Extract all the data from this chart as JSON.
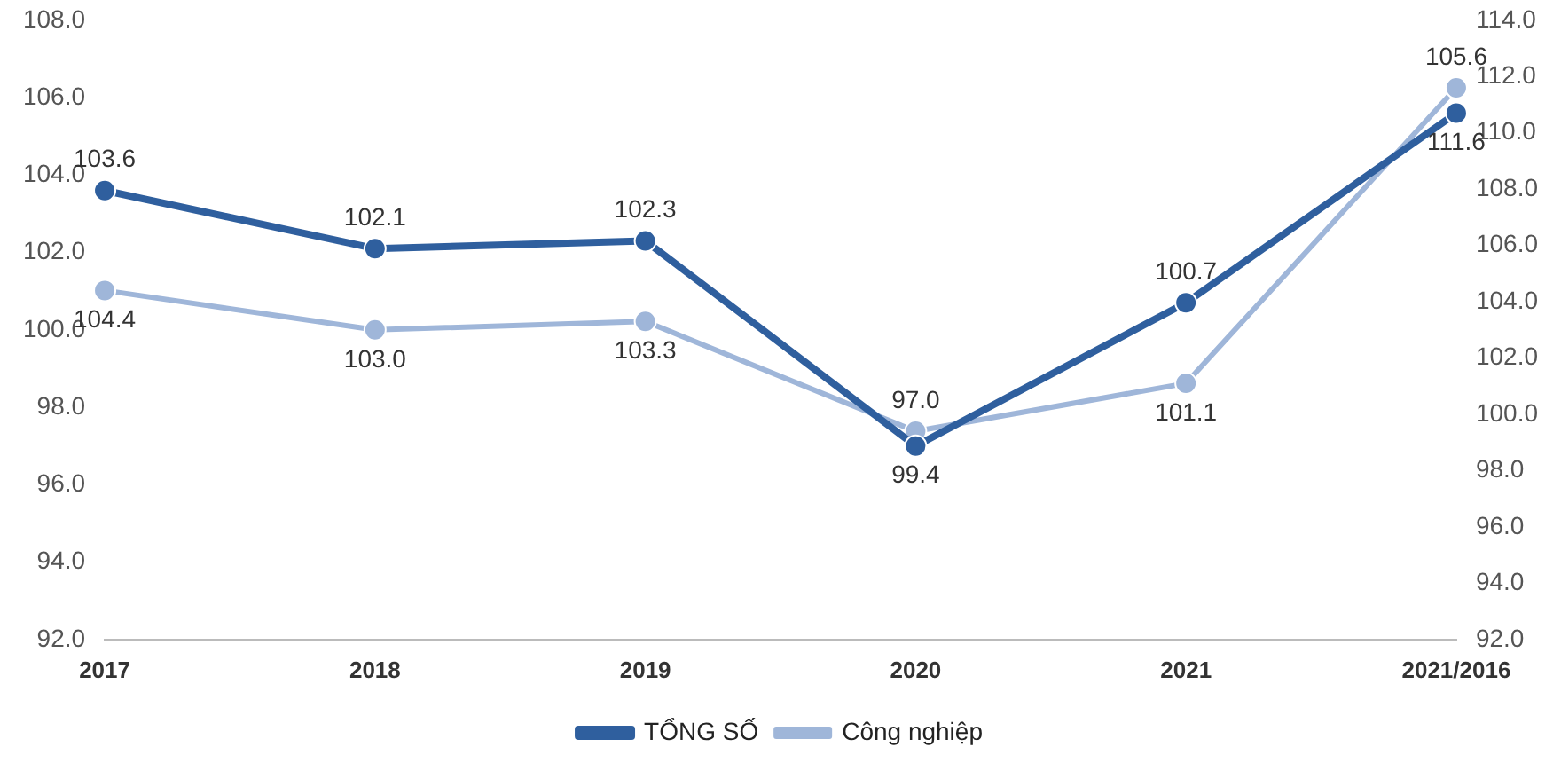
{
  "chart_data": {
    "type": "line",
    "categories": [
      "2017",
      "2018",
      "2019",
      "2020",
      "2021",
      "2021/2016"
    ],
    "series": [
      {
        "name": "TỔNG SỐ",
        "color": "#2f5f9e",
        "values": [
          103.6,
          102.1,
          102.3,
          97.0,
          100.7,
          105.6
        ],
        "value_labels": [
          "103.6",
          "102.1",
          "102.3",
          "97.0",
          "100.7",
          "105.6"
        ]
      },
      {
        "name": "Công nghiệp",
        "color": "#9fb6d9",
        "axis": "y2",
        "values": [
          104.4,
          103.0,
          103.3,
          99.4,
          101.1,
          111.6
        ],
        "value_labels": [
          "104.4",
          "103.0",
          "103.3",
          "99.4",
          "101.1",
          "111.6"
        ]
      }
    ],
    "ylim": [
      92,
      108
    ],
    "yticks": [
      {
        "value": 92,
        "label": "92.0"
      },
      {
        "value": 94,
        "label": "94.0"
      },
      {
        "value": 96,
        "label": "96.0"
      },
      {
        "value": 98,
        "label": "98.0"
      },
      {
        "value": 100,
        "label": "100.0"
      },
      {
        "value": 102,
        "label": "102.0"
      },
      {
        "value": 104,
        "label": "104.0"
      },
      {
        "value": 106,
        "label": "106.0"
      },
      {
        "value": 108,
        "label": "108.0"
      }
    ],
    "y2lim": [
      92,
      114
    ],
    "y2ticks": [
      {
        "value": 92,
        "label": "92.0"
      },
      {
        "value": 94,
        "label": "94.0"
      },
      {
        "value": 96,
        "label": "96.0"
      },
      {
        "value": 98,
        "label": "98.0"
      },
      {
        "value": 100,
        "label": "100.0"
      },
      {
        "value": 102,
        "label": "102.0"
      },
      {
        "value": 104,
        "label": "104.0"
      },
      {
        "value": 106,
        "label": "106.0"
      },
      {
        "value": 108,
        "label": "108.0"
      },
      {
        "value": 110,
        "label": "110.0"
      },
      {
        "value": 112,
        "label": "112.0"
      },
      {
        "value": 114,
        "label": "114.0"
      }
    ],
    "grid": false,
    "legend": "bottom",
    "marker": "circle",
    "line_style": "solid"
  }
}
